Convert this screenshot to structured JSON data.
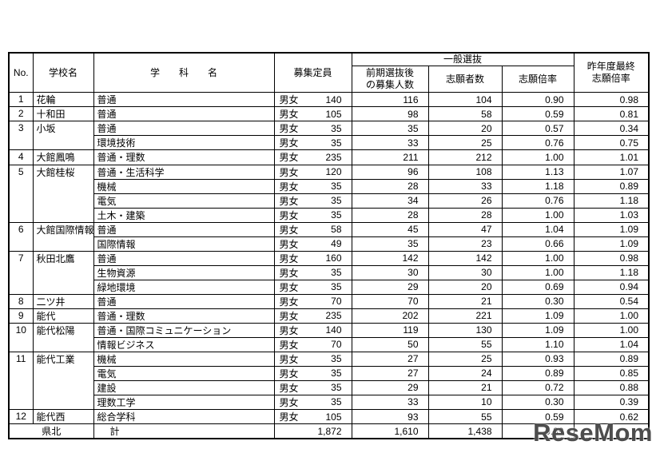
{
  "watermark": "ReseMom",
  "header": {
    "no": "No.",
    "school": "学校名",
    "department": "学　　科　　名",
    "capacity": "募集定員",
    "general": "一般選抜",
    "after_early": "前期選抜後\nの募集人数",
    "applicants": "志願者数",
    "ratio": "志願倍率",
    "last_year": "昨年度最終\n志願倍率"
  },
  "schools": [
    {
      "no": "1",
      "name": "花輪",
      "depts": [
        {
          "dept": "普通",
          "gender": "男女",
          "capacity": "140",
          "after": "116",
          "applicants": "104",
          "ratio": "0.90",
          "last": "0.98"
        }
      ]
    },
    {
      "no": "2",
      "name": "十和田",
      "depts": [
        {
          "dept": "普通",
          "gender": "男女",
          "capacity": "105",
          "after": "98",
          "applicants": "58",
          "ratio": "0.59",
          "last": "0.81"
        }
      ]
    },
    {
      "no": "3",
      "name": "小坂",
      "depts": [
        {
          "dept": "普通",
          "gender": "男女",
          "capacity": "35",
          "after": "35",
          "applicants": "20",
          "ratio": "0.57",
          "last": "0.34"
        },
        {
          "dept": "環境技術",
          "gender": "男女",
          "capacity": "35",
          "after": "33",
          "applicants": "25",
          "ratio": "0.76",
          "last": "0.75"
        }
      ]
    },
    {
      "no": "4",
      "name": "大館鳳鳴",
      "depts": [
        {
          "dept": "普通・理数",
          "gender": "男女",
          "capacity": "235",
          "after": "211",
          "applicants": "212",
          "ratio": "1.00",
          "last": "1.01"
        }
      ]
    },
    {
      "no": "5",
      "name": "大館桂桜",
      "depts": [
        {
          "dept": "普通・生活科学",
          "gender": "男女",
          "capacity": "120",
          "after": "96",
          "applicants": "108",
          "ratio": "1.13",
          "last": "1.07"
        },
        {
          "dept": "機械",
          "gender": "男女",
          "capacity": "35",
          "after": "28",
          "applicants": "33",
          "ratio": "1.18",
          "last": "0.89"
        },
        {
          "dept": "電気",
          "gender": "男女",
          "capacity": "35",
          "after": "34",
          "applicants": "26",
          "ratio": "0.76",
          "last": "1.18"
        },
        {
          "dept": "土木・建築",
          "gender": "男女",
          "capacity": "35",
          "after": "28",
          "applicants": "28",
          "ratio": "1.00",
          "last": "1.03"
        }
      ]
    },
    {
      "no": "6",
      "name": "大館国際情報学院",
      "depts": [
        {
          "dept": "普通",
          "gender": "男女",
          "capacity": "58",
          "after": "45",
          "applicants": "47",
          "ratio": "1.04",
          "last": "1.09"
        },
        {
          "dept": "国際情報",
          "gender": "男女",
          "capacity": "49",
          "after": "35",
          "applicants": "23",
          "ratio": "0.66",
          "last": "1.09"
        }
      ]
    },
    {
      "no": "7",
      "name": "秋田北鷹",
      "depts": [
        {
          "dept": "普通",
          "gender": "男女",
          "capacity": "160",
          "after": "142",
          "applicants": "142",
          "ratio": "1.00",
          "last": "0.98"
        },
        {
          "dept": "生物資源",
          "gender": "男女",
          "capacity": "35",
          "after": "30",
          "applicants": "30",
          "ratio": "1.00",
          "last": "1.18"
        },
        {
          "dept": "緑地環境",
          "gender": "男女",
          "capacity": "35",
          "after": "29",
          "applicants": "20",
          "ratio": "0.69",
          "last": "0.94"
        }
      ]
    },
    {
      "no": "8",
      "name": "二ツ井",
      "depts": [
        {
          "dept": "普通",
          "gender": "男女",
          "capacity": "70",
          "after": "70",
          "applicants": "21",
          "ratio": "0.30",
          "last": "0.54"
        }
      ]
    },
    {
      "no": "9",
      "name": "能代",
      "depts": [
        {
          "dept": "普通・理数",
          "gender": "男女",
          "capacity": "235",
          "after": "202",
          "applicants": "221",
          "ratio": "1.09",
          "last": "1.00"
        }
      ]
    },
    {
      "no": "10",
      "name": "能代松陽",
      "depts": [
        {
          "dept": "普通・国際コミュニケーション",
          "gender": "男女",
          "capacity": "140",
          "after": "119",
          "applicants": "130",
          "ratio": "1.09",
          "last": "1.00"
        },
        {
          "dept": "情報ビジネス",
          "gender": "男女",
          "capacity": "70",
          "after": "50",
          "applicants": "55",
          "ratio": "1.10",
          "last": "1.04"
        }
      ]
    },
    {
      "no": "11",
      "name": "能代工業",
      "depts": [
        {
          "dept": "機械",
          "gender": "男女",
          "capacity": "35",
          "after": "27",
          "applicants": "25",
          "ratio": "0.93",
          "last": "0.89"
        },
        {
          "dept": "電気",
          "gender": "男女",
          "capacity": "35",
          "after": "27",
          "applicants": "24",
          "ratio": "0.89",
          "last": "0.85"
        },
        {
          "dept": "建設",
          "gender": "男女",
          "capacity": "35",
          "after": "29",
          "applicants": "21",
          "ratio": "0.72",
          "last": "0.88"
        },
        {
          "dept": "理数工学",
          "gender": "男女",
          "capacity": "35",
          "after": "33",
          "applicants": "10",
          "ratio": "0.30",
          "last": "0.39"
        }
      ]
    },
    {
      "no": "12",
      "name": "能代西",
      "depts": [
        {
          "dept": "総合学科",
          "gender": "男女",
          "capacity": "105",
          "after": "93",
          "applicants": "55",
          "ratio": "0.59",
          "last": "0.62"
        }
      ]
    }
  ],
  "total": {
    "region": "県北",
    "label": "計",
    "capacity": "1,872",
    "after": "1,610",
    "applicants": "1,438",
    "ratio": "0.89",
    "last": ""
  }
}
